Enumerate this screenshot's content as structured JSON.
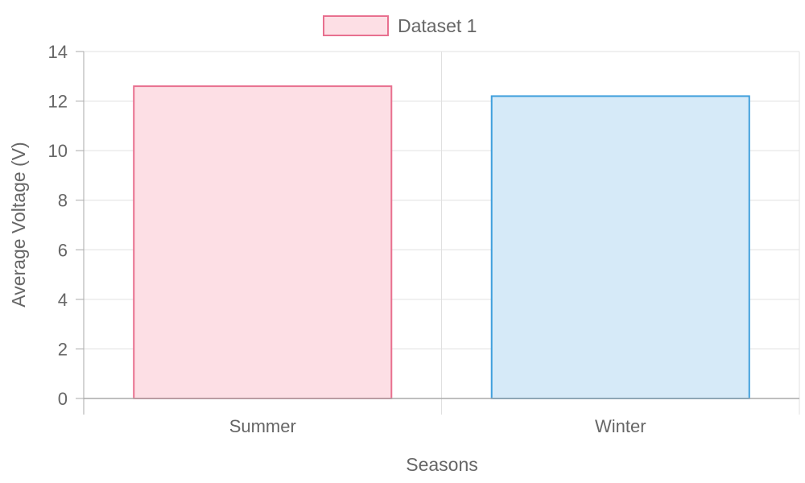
{
  "chart_data": {
    "type": "bar",
    "categories": [
      "Summer",
      "Winter"
    ],
    "series": [
      {
        "name": "Dataset 1",
        "values": [
          12.6,
          12.2
        ],
        "fill_colors": [
          "#fdDFE5",
          "#d6eaf8"
        ],
        "border_colors": [
          "#e8708f",
          "#3f9fdc"
        ]
      }
    ],
    "xlabel": "Seasons",
    "ylabel": "Average Voltage (V)",
    "ylim": [
      0,
      14
    ],
    "yticks": [
      0,
      2,
      4,
      6,
      8,
      10,
      12,
      14
    ],
    "grid": true,
    "legend_position": "top"
  },
  "colors": {
    "grid": "#e0e0e0",
    "axis": "#aaaaaa",
    "text": "#666666"
  }
}
